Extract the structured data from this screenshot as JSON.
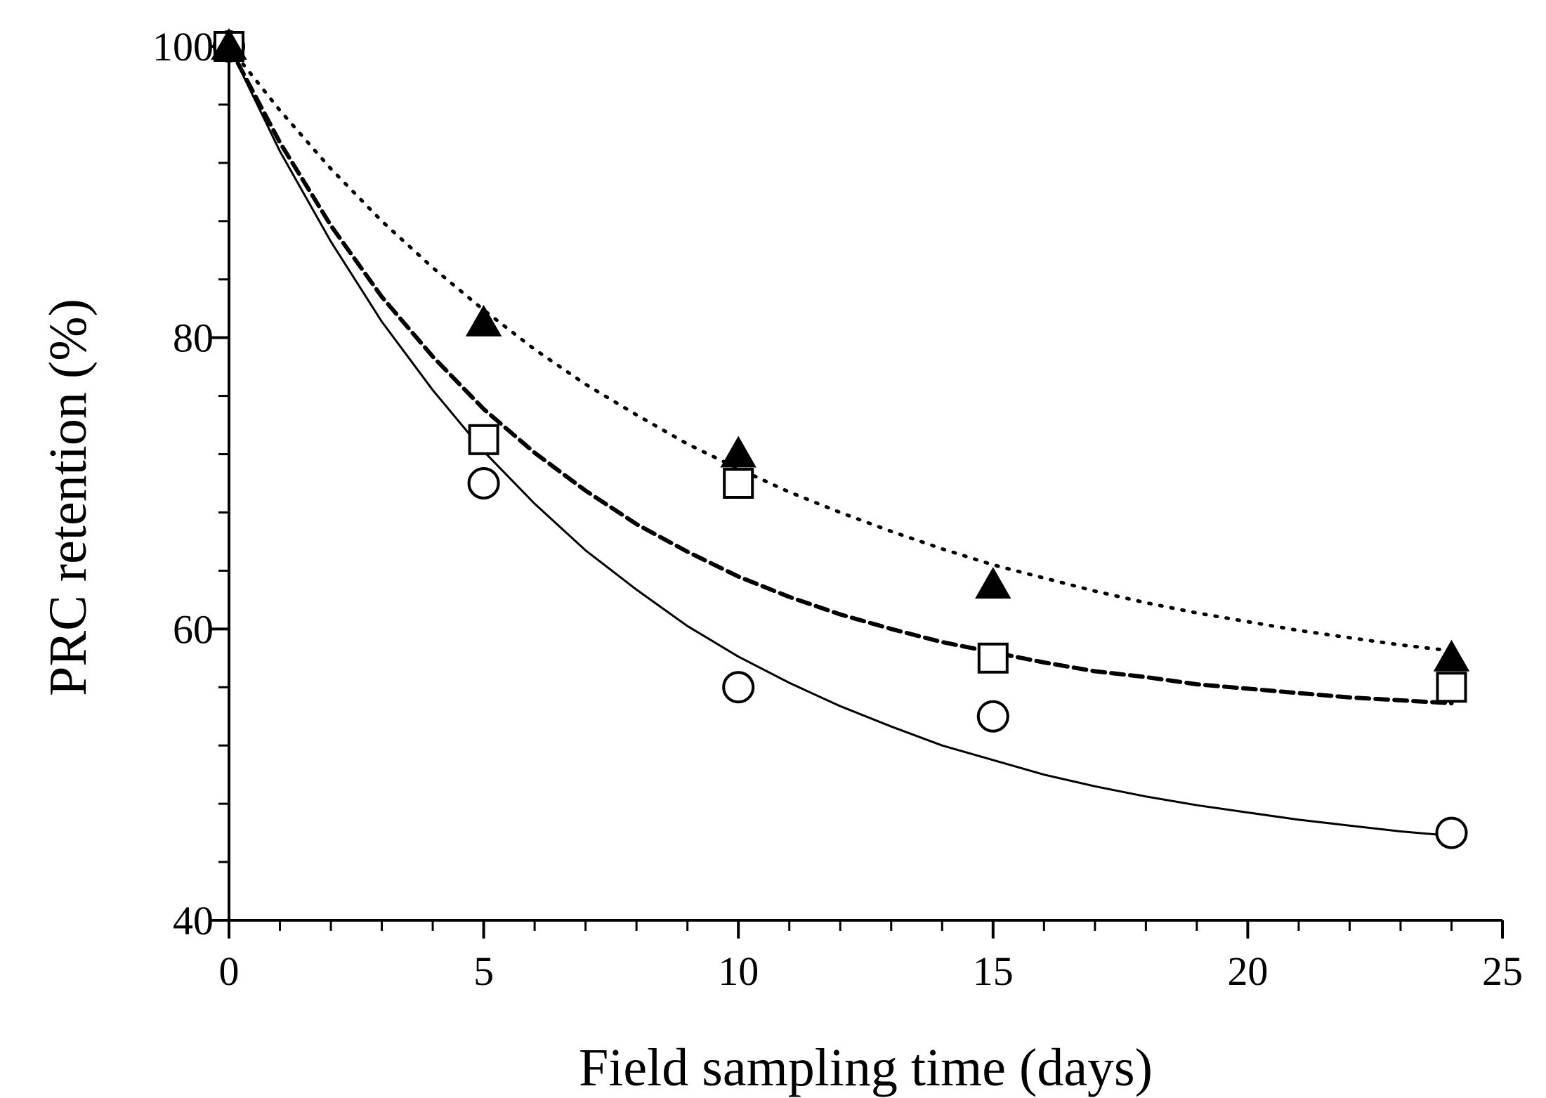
{
  "chart_data": {
    "type": "scatter",
    "title": "",
    "xlabel": "Field sampling time (days)",
    "ylabel": "PRC retention (%)",
    "xlim": [
      0,
      25
    ],
    "ylim": [
      40,
      100
    ],
    "xticks": [
      0,
      5,
      10,
      15,
      20,
      25
    ],
    "yticks": [
      40,
      60,
      80,
      100
    ],
    "grid": false,
    "legend": "none",
    "series": [
      {
        "name": "circles",
        "marker": "open-circle",
        "x": [
          0,
          5,
          10,
          15,
          24
        ],
        "y": [
          100,
          70,
          56,
          54,
          46
        ],
        "fit": {
          "style": "solid",
          "x": [
            0,
            1,
            2,
            3,
            4,
            5,
            6,
            7,
            8,
            9,
            10,
            11,
            12,
            13,
            14,
            15,
            16,
            17,
            18,
            19,
            20,
            21,
            22,
            23,
            24
          ],
          "y": [
            100,
            92.8,
            86.6,
            81.1,
            76.4,
            72.2,
            68.6,
            65.4,
            62.7,
            60.2,
            58.1,
            56.3,
            54.7,
            53.3,
            52.0,
            51.0,
            50.0,
            49.2,
            48.5,
            47.9,
            47.4,
            46.9,
            46.5,
            46.1,
            45.8
          ]
        }
      },
      {
        "name": "squares",
        "marker": "open-square",
        "x": [
          0,
          5,
          10,
          15,
          24
        ],
        "y": [
          100,
          73,
          70,
          58,
          56
        ],
        "fit": {
          "style": "dashed",
          "x": [
            0,
            1,
            2,
            3,
            4,
            5,
            6,
            7,
            8,
            9,
            10,
            11,
            12,
            13,
            14,
            15,
            16,
            17,
            18,
            19,
            20,
            21,
            22,
            23,
            24
          ],
          "y": [
            100,
            93.4,
            87.7,
            82.8,
            78.7,
            75.1,
            72.1,
            69.5,
            67.2,
            65.3,
            63.6,
            62.2,
            61.0,
            60.0,
            59.1,
            58.4,
            57.7,
            57.1,
            56.7,
            56.2,
            55.9,
            55.6,
            55.3,
            55.1,
            54.9
          ]
        }
      },
      {
        "name": "triangles",
        "marker": "filled-triangle",
        "x": [
          0,
          5,
          10,
          15,
          24
        ],
        "y": [
          100,
          81,
          72,
          63,
          58
        ],
        "fit": {
          "style": "dotted",
          "x": [
            0,
            1,
            2,
            3,
            4,
            5,
            6,
            7,
            8,
            9,
            10,
            11,
            12,
            13,
            14,
            15,
            16,
            17,
            18,
            19,
            20,
            21,
            22,
            23,
            24
          ],
          "y": [
            100,
            95.6,
            91.6,
            88.0,
            84.8,
            81.9,
            79.2,
            76.8,
            74.7,
            72.7,
            71.0,
            69.4,
            68.0,
            66.7,
            65.5,
            64.4,
            63.5,
            62.6,
            61.8,
            61.1,
            60.5,
            59.9,
            59.4,
            58.9,
            58.5
          ]
        }
      }
    ]
  }
}
